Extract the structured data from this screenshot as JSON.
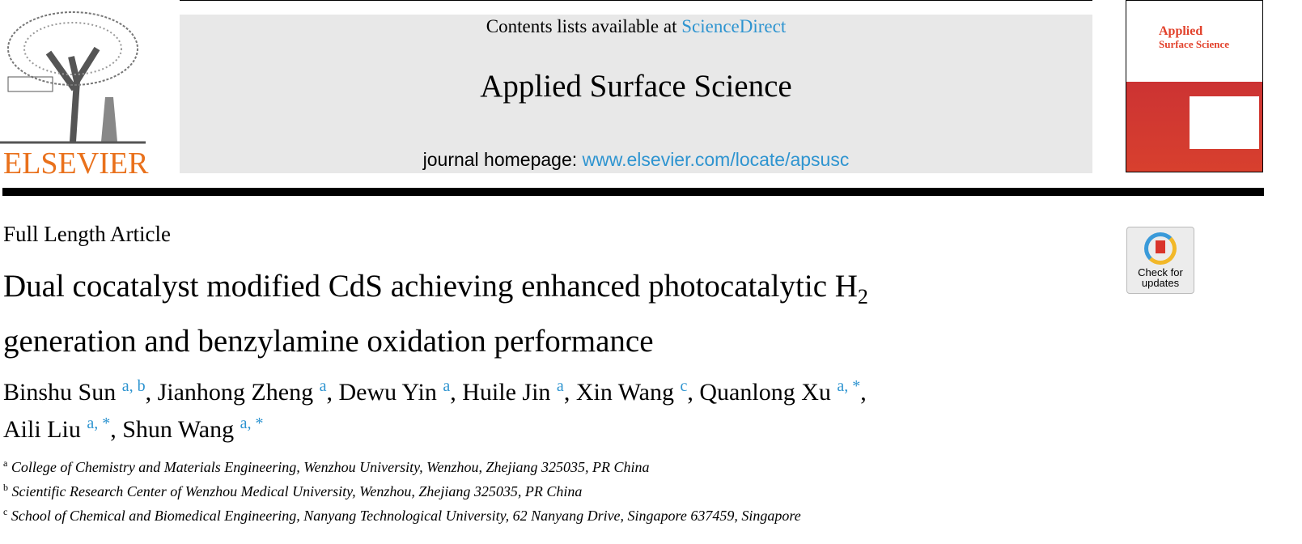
{
  "header": {
    "publisher_logo_text": "ELSEVIER",
    "contents_prefix": "Contents lists available at ",
    "contents_link": "ScienceDirect",
    "journal_title": "Applied Surface Science",
    "homepage_prefix": "journal homepage: ",
    "homepage_link": "www.elsevier.com/locate/apsusc",
    "cover_title_1": "Applied",
    "cover_title_2": "Surface Science"
  },
  "article": {
    "type": "Full Length Article",
    "title_line1": "Dual cocatalyst modified CdS achieving enhanced photocatalytic H",
    "title_sub": "2",
    "title_line2": "generation and benzylamine oxidation performance",
    "authors": [
      {
        "name": "Binshu Sun",
        "aff": "a, b",
        "sep": ", "
      },
      {
        "name": "Jianhong Zheng",
        "aff": "a",
        "sep": ", "
      },
      {
        "name": "Dewu Yin",
        "aff": "a",
        "sep": ", "
      },
      {
        "name": "Huile Jin",
        "aff": "a",
        "sep": ", "
      },
      {
        "name": "Xin Wang",
        "aff": "c",
        "sep": ", "
      },
      {
        "name": "Quanlong Xu",
        "aff": "a, *",
        "sep": ","
      },
      {
        "name": "Aili Liu",
        "aff": "a, *",
        "sep": ", "
      },
      {
        "name": "Shun Wang",
        "aff": "a, *",
        "sep": ""
      }
    ],
    "affiliations": [
      {
        "label": "a",
        "text": "College of Chemistry and Materials Engineering, Wenzhou University, Wenzhou, Zhejiang 325035, PR China"
      },
      {
        "label": "b",
        "text": "Scientific Research Center of Wenzhou Medical University, Wenzhou, Zhejiang 325035, PR China"
      },
      {
        "label": "c",
        "text": "School of Chemical and Biomedical Engineering, Nanyang Technological University, 62 Nanyang Drive, Singapore 637459, Singapore"
      }
    ],
    "check_updates_1": "Check for",
    "check_updates_2": "updates"
  }
}
